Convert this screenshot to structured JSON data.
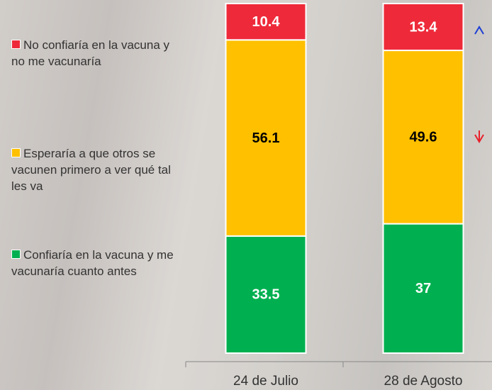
{
  "chart_data": {
    "type": "stacked_bar",
    "categories": [
      "24 de Julio",
      "28 de Agosto"
    ],
    "ylim": [
      0,
      100
    ],
    "series": [
      {
        "name": "Confiaría en la vacuna y me vacunaría cuanto antes",
        "color": "#00b050",
        "label_color": "#ffffff",
        "values": [
          33.5,
          37
        ]
      },
      {
        "name": "Esperaría a que otros se vacunen primero a ver qué tal les va",
        "color": "#ffc000",
        "label_color": "#000000",
        "values": [
          56.1,
          49.6
        ]
      },
      {
        "name": "No confiaría en la vacuna y no me vacunaría",
        "color": "#ee2a3a",
        "label_color": "#ffffff",
        "values": [
          10.4,
          13.4
        ]
      }
    ]
  }
}
